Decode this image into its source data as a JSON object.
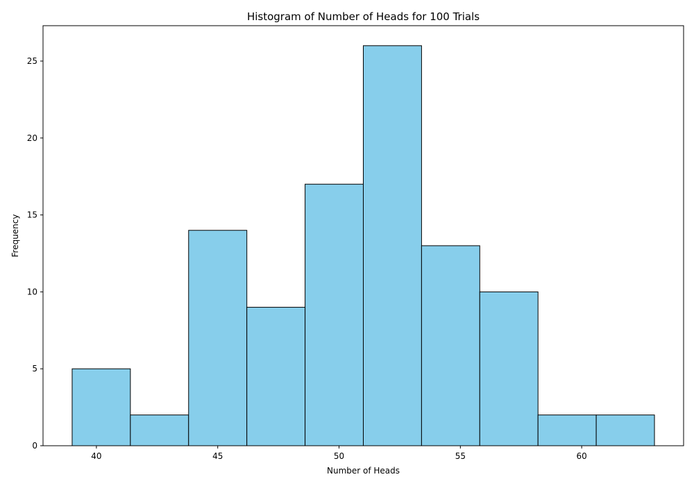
{
  "chart_data": {
    "type": "bar",
    "title": "Histogram of Number of Heads for 100 Trials",
    "xlabel": "Number of Heads",
    "ylabel": "Frequency",
    "bin_edges": [
      39.0,
      41.4,
      43.8,
      46.2,
      48.6,
      51.0,
      53.4,
      55.8,
      58.2,
      60.6,
      63.0
    ],
    "values": [
      5,
      2,
      14,
      9,
      17,
      26,
      13,
      10,
      2,
      2
    ],
    "xlim": [
      37.8,
      64.2
    ],
    "ylim": [
      0,
      27.3
    ],
    "xticks": [
      40,
      45,
      50,
      55,
      60
    ],
    "yticks": [
      0,
      5,
      10,
      15,
      20,
      25
    ],
    "grid": false,
    "bar_color": "#87CEEB",
    "edge_color": "#000000"
  }
}
